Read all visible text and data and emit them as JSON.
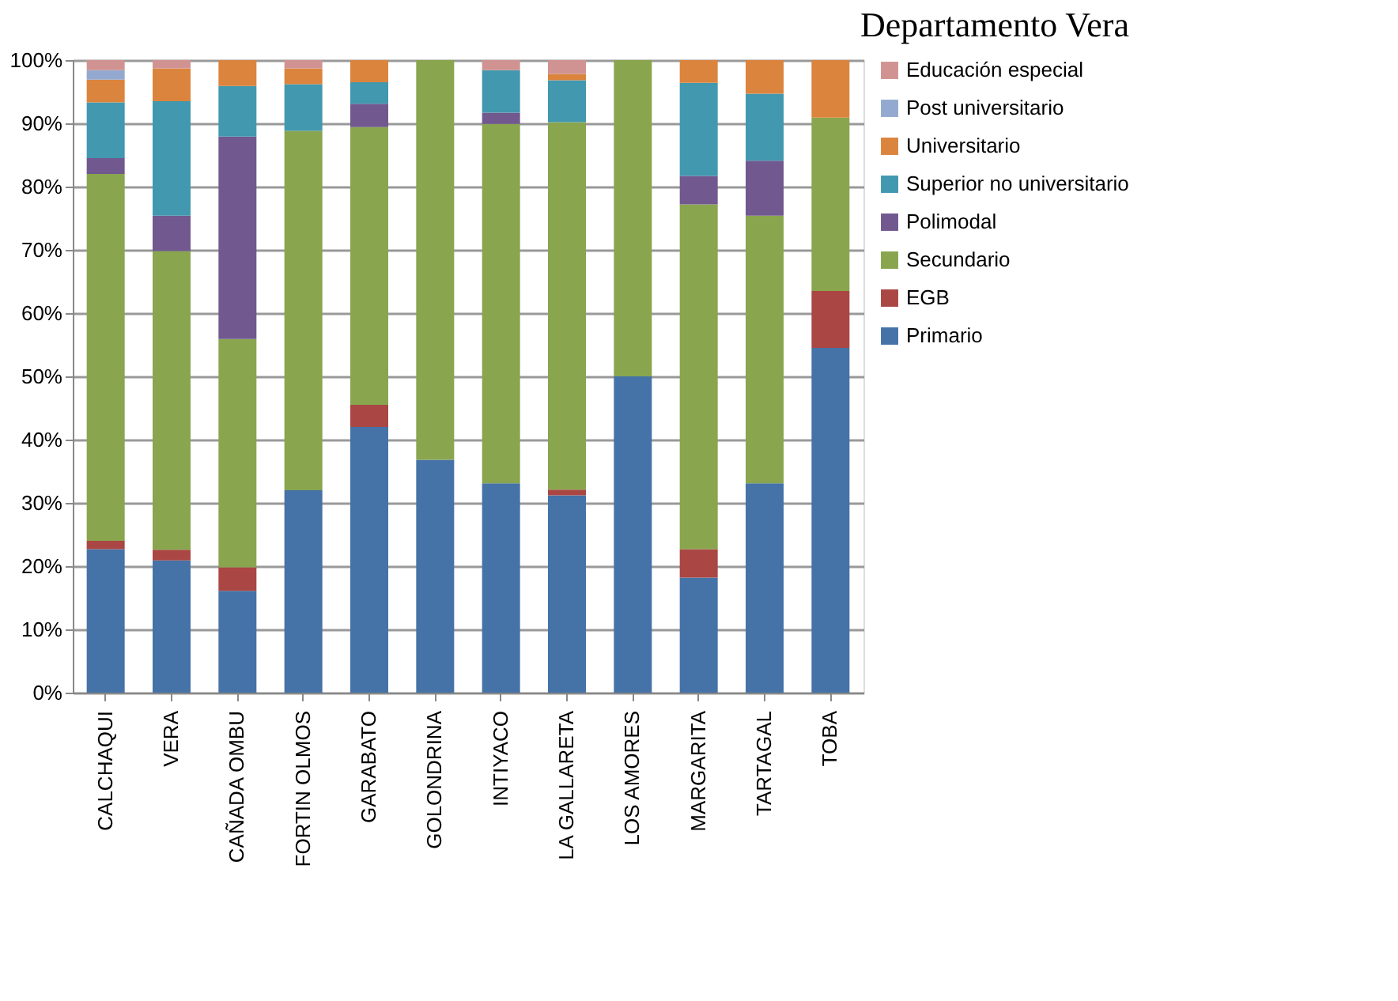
{
  "chart_data": {
    "type": "bar",
    "stacked": true,
    "title": "Departamento Vera",
    "categories": [
      "CALCHAQUI",
      "VERA",
      "CAÑADA OMBU",
      "FORTIN OLMOS",
      "GARABATO",
      "GOLONDRINA",
      "INTIYACO",
      "LA GALLARETA",
      "LOS AMORES",
      "MARGARITA",
      "TARTAGAL",
      "TOBA"
    ],
    "series": [
      {
        "name": "Primario",
        "color": "#4572a7",
        "values": [
          22.7,
          20.9,
          16.1,
          32.0,
          42.0,
          36.8,
          33.1,
          31.2,
          50.0,
          18.2,
          33.1,
          54.5
        ]
      },
      {
        "name": "EGB",
        "color": "#aa4643",
        "values": [
          1.3,
          1.7,
          3.7,
          0,
          3.5,
          0,
          0,
          0.9,
          0,
          4.5,
          0,
          9.0
        ]
      },
      {
        "name": "Secundario",
        "color": "#89a54e",
        "values": [
          58.0,
          47.2,
          36.1,
          56.8,
          43.9,
          63.2,
          56.8,
          58.1,
          50.0,
          54.5,
          42.3,
          27.4
        ]
      },
      {
        "name": "Polimodal",
        "color": "#71588f",
        "values": [
          2.5,
          5.6,
          32.0,
          0,
          3.7,
          0,
          1.8,
          0,
          0,
          4.5,
          8.7,
          0
        ]
      },
      {
        "name": "Superior no universitario",
        "color": "#4198af",
        "values": [
          8.8,
          18.1,
          8.0,
          7.4,
          3.4,
          0,
          6.7,
          6.6,
          0,
          14.7,
          10.6,
          0
        ]
      },
      {
        "name": "Universitario",
        "color": "#db843d",
        "values": [
          3.6,
          5.2,
          4.1,
          2.5,
          3.5,
          0,
          0,
          1.0,
          0,
          3.6,
          5.3,
          9.1
        ]
      },
      {
        "name": "Post universitario",
        "color": "#93a9cf",
        "values": [
          1.5,
          0,
          0,
          0,
          0,
          0,
          0,
          0,
          0,
          0,
          0,
          0
        ]
      },
      {
        "name": "Educación especial",
        "color": "#d19392",
        "values": [
          1.6,
          1.3,
          0,
          1.3,
          0,
          0,
          1.6,
          2.2,
          0,
          0,
          0,
          0
        ]
      }
    ],
    "ylim": [
      0,
      100
    ],
    "yticks": [
      {
        "value": 0,
        "label": "0%"
      },
      {
        "value": 10,
        "label": "10%"
      },
      {
        "value": 20,
        "label": "20%"
      },
      {
        "value": 30,
        "label": "30%"
      },
      {
        "value": 40,
        "label": "40%"
      },
      {
        "value": 50,
        "label": "50%"
      },
      {
        "value": 60,
        "label": "60%"
      },
      {
        "value": 70,
        "label": "70%"
      },
      {
        "value": 80,
        "label": "80%"
      },
      {
        "value": 90,
        "label": "90%"
      },
      {
        "value": 100,
        "label": "100%"
      }
    ],
    "grid": "y",
    "legend": "right"
  }
}
